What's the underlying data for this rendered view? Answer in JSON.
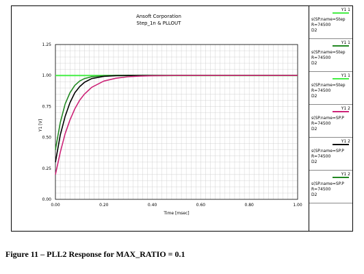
{
  "caption": "Figure 11 – PLL2 Response for MAX_RATIO = 0.1",
  "colors": {
    "background": "#ffffff",
    "grid": "#c8c8c8"
  },
  "chart_data": {
    "type": "line",
    "title": "Ansoft Corporation",
    "subtitle": "Step_1n & PLLOUT",
    "xlabel": "Time [msec]",
    "ylabel": "Y1 [V]",
    "xlim": [
      0.0,
      1.0
    ],
    "ylim": [
      0.0,
      1.25
    ],
    "xticks": [
      0.0,
      0.2,
      0.4,
      0.6,
      0.8,
      1.0
    ],
    "xtick_labels": [
      "0.00",
      "0.20",
      "0.40",
      "0.60",
      "0.80",
      "1.00"
    ],
    "yticks": [
      0.0,
      0.25,
      0.5,
      0.75,
      1.0,
      1.25
    ],
    "ytick_labels": [
      "0.00",
      "0.25",
      "0.50",
      "0.75",
      "1.00",
      "1.25"
    ],
    "grid": true,
    "legend_placement": "right",
    "series": [
      {
        "color": "#44ee44",
        "x": [
          0.0,
          1.0
        ],
        "y": [
          1.0,
          1.0
        ]
      },
      {
        "color": "#228822",
        "x": [
          0.0,
          0.02,
          0.04,
          0.06,
          0.08,
          0.1,
          0.12,
          0.15,
          0.2,
          0.25,
          0.3,
          0.4,
          1.0
        ],
        "y": [
          0.4,
          0.62,
          0.77,
          0.86,
          0.92,
          0.955,
          0.975,
          0.99,
          0.998,
          1.0,
          1.0,
          1.0,
          1.0
        ]
      },
      {
        "color": "#000000",
        "x": [
          0.0,
          0.02,
          0.04,
          0.06,
          0.08,
          0.1,
          0.12,
          0.15,
          0.2,
          0.25,
          0.3,
          0.4,
          1.0
        ],
        "y": [
          0.3,
          0.52,
          0.67,
          0.78,
          0.86,
          0.91,
          0.945,
          0.975,
          0.993,
          0.999,
          1.0,
          1.0,
          1.0
        ]
      },
      {
        "color": "#cc2277",
        "x": [
          0.0,
          0.02,
          0.04,
          0.06,
          0.08,
          0.1,
          0.12,
          0.15,
          0.2,
          0.25,
          0.3,
          0.35,
          0.4,
          0.5,
          1.0
        ],
        "y": [
          0.2,
          0.38,
          0.53,
          0.64,
          0.73,
          0.8,
          0.85,
          0.905,
          0.955,
          0.978,
          0.99,
          0.995,
          0.998,
          1.0,
          1.0
        ]
      }
    ]
  },
  "legend": [
    {
      "hdr": "Y1   1",
      "color": "#44ee44",
      "lines": [
        "s(SP.name=Step",
        "R=74500",
        "D2"
      ]
    },
    {
      "hdr": "Y1   1",
      "color": "#228822",
      "lines": [
        "s(SP.name=Step",
        "R=74500",
        "D2"
      ]
    },
    {
      "hdr": "Y1   1",
      "color": "#44ee44",
      "lines": [
        "s(SP.name=Step",
        "R=74500",
        "D2"
      ]
    },
    {
      "hdr": "Y1   2",
      "color": "#cc2277",
      "lines": [
        "s(SP.name=SP.P",
        "R=74500",
        "D2"
      ]
    },
    {
      "hdr": "Y1   2",
      "color": "#000000",
      "lines": [
        "s(SP.name=SP.P",
        "R=74500",
        "D2"
      ]
    },
    {
      "hdr": "Y1   2",
      "color": "#228822",
      "lines": [
        "s(SP.name=SP.P",
        "R=74500",
        "D2"
      ]
    }
  ]
}
